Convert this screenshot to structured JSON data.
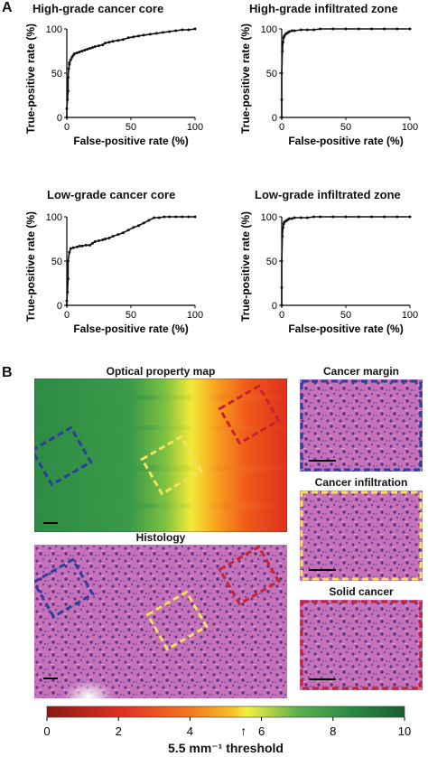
{
  "panels": {
    "a_label": "A",
    "b_label": "B"
  },
  "chart_data": [
    {
      "type": "line",
      "title": "High-grade cancer core",
      "xlabel": "False-positive rate (%)",
      "ylabel": "True-positive rate (%)",
      "xlim": [
        0,
        100
      ],
      "ylim": [
        0,
        100
      ],
      "xticks": [
        "0",
        "50",
        "100"
      ],
      "yticks": [
        "0",
        "50",
        "100"
      ],
      "series": [
        {
          "x": [
            0,
            0,
            0.5,
            1,
            1,
            1.5,
            2,
            2,
            3,
            4,
            5,
            6,
            8,
            10,
            12,
            14,
            16,
            18,
            20,
            22,
            25,
            28,
            30,
            33,
            36,
            40,
            44,
            48,
            52,
            56,
            60,
            65,
            70,
            75,
            80,
            85,
            90,
            95,
            100
          ],
          "y": [
            0,
            10,
            20,
            30,
            45,
            55,
            60,
            62,
            65,
            68,
            70,
            72,
            73,
            74,
            75,
            76,
            77,
            78,
            79,
            80,
            81,
            82,
            84,
            85,
            86,
            87,
            88,
            90,
            91,
            92,
            93,
            94,
            95,
            96,
            97,
            98,
            99,
            99,
            100
          ]
        }
      ]
    },
    {
      "type": "line",
      "title": "High-grade infiltrated zone",
      "xlabel": "False-positive rate (%)",
      "ylabel": "True-positive rate (%)",
      "xlim": [
        0,
        100
      ],
      "ylim": [
        0,
        100
      ],
      "xticks": [
        "0",
        "50",
        "100"
      ],
      "yticks": [
        "0",
        "50",
        "100"
      ],
      "series": [
        {
          "x": [
            0,
            0,
            0,
            0.5,
            1,
            1.5,
            2,
            3,
            4,
            5,
            6,
            8,
            10,
            15,
            20,
            25,
            30,
            40,
            50,
            60,
            70,
            80,
            90,
            100
          ],
          "y": [
            0,
            20,
            50,
            75,
            85,
            90,
            92,
            94,
            95,
            96,
            97,
            98,
            98,
            99,
            99,
            99,
            100,
            100,
            100,
            100,
            100,
            100,
            100,
            100
          ]
        }
      ]
    },
    {
      "type": "line",
      "title": "Low-grade cancer core",
      "xlabel": "False-positive rate (%)",
      "ylabel": "True-positive rate (%)",
      "xlim": [
        0,
        100
      ],
      "ylim": [
        0,
        100
      ],
      "xticks": [
        "0",
        "50",
        "100"
      ],
      "yticks": [
        "0",
        "50",
        "100"
      ],
      "series": [
        {
          "x": [
            0,
            0,
            0.5,
            1,
            1,
            2,
            3,
            5,
            8,
            10,
            12,
            15,
            18,
            20,
            22,
            25,
            28,
            30,
            33,
            36,
            40,
            44,
            48,
            52,
            56,
            60,
            64,
            68,
            72,
            76,
            80,
            85,
            90,
            95,
            100
          ],
          "y": [
            0,
            5,
            15,
            30,
            50,
            60,
            64,
            65,
            66,
            67,
            67,
            68,
            68,
            70,
            72,
            73,
            74,
            75,
            76,
            78,
            80,
            82,
            85,
            88,
            90,
            93,
            96,
            99,
            99,
            100,
            100,
            100,
            100,
            100,
            100
          ]
        }
      ]
    },
    {
      "type": "line",
      "title": "Low-grade infiltrated zone",
      "xlabel": "False-positive rate (%)",
      "ylabel": "True-positive rate (%)",
      "xlim": [
        0,
        100
      ],
      "ylim": [
        0,
        100
      ],
      "xticks": [
        "0",
        "50",
        "100"
      ],
      "yticks": [
        "0",
        "50",
        "100"
      ],
      "series": [
        {
          "x": [
            0,
            0,
            0,
            0.5,
            1,
            1.5,
            2,
            3,
            4,
            5,
            6,
            8,
            10,
            15,
            20,
            25,
            30,
            40,
            50,
            60,
            70,
            80,
            90,
            100
          ],
          "y": [
            0,
            20,
            50,
            78,
            88,
            92,
            94,
            95,
            96,
            97,
            98,
            98,
            99,
            99,
            99,
            100,
            100,
            100,
            100,
            100,
            100,
            100,
            100,
            100
          ]
        }
      ]
    }
  ],
  "panel_b": {
    "map_title": "Optical property map",
    "histology_title": "Histology",
    "thumbs": [
      {
        "title": "Cancer margin",
        "color": "#2a3f9e"
      },
      {
        "title": "Cancer infiltration",
        "color": "#f2e35a"
      },
      {
        "title": "Solid cancer",
        "color": "#d0202a"
      }
    ],
    "colorbar": {
      "ticks": [
        "0",
        "2",
        "4",
        "6",
        "8",
        "10"
      ],
      "threshold_value": 5.5,
      "threshold_label": "5.5 mm⁻¹ threshold",
      "arrow_glyph": "↑"
    }
  }
}
